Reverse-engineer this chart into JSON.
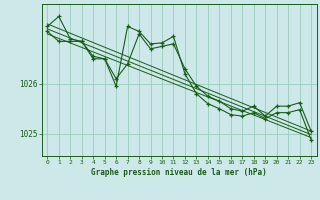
{
  "title": "Graphe pression niveau de la mer (hPa)",
  "bg_color": "#cce8e8",
  "grid_color": "#99ccbb",
  "line_color": "#1a5c1a",
  "text_color": "#1a5c1a",
  "xlim": [
    -0.5,
    23.5
  ],
  "ylim": [
    1024.55,
    1027.6
  ],
  "yticks": [
    1025,
    1026
  ],
  "xticks": [
    0,
    1,
    2,
    3,
    4,
    5,
    6,
    7,
    8,
    9,
    10,
    11,
    12,
    13,
    14,
    15,
    16,
    17,
    18,
    19,
    20,
    21,
    22,
    23
  ],
  "series1_x": [
    0,
    1,
    2,
    3,
    4,
    5,
    6,
    7,
    8,
    9,
    10,
    11,
    12,
    13,
    14,
    15,
    16,
    17,
    18,
    19,
    20,
    21,
    22,
    23
  ],
  "series1_y": [
    1027.15,
    1027.35,
    1026.9,
    1026.85,
    1026.5,
    1026.5,
    1026.1,
    1026.4,
    1027.0,
    1026.7,
    1026.75,
    1026.8,
    1026.3,
    1025.95,
    1025.75,
    1025.65,
    1025.5,
    1025.45,
    1025.55,
    1025.35,
    1025.55,
    1025.55,
    1025.62,
    1025.05
  ],
  "series2_x": [
    0,
    1,
    2,
    3,
    4,
    5,
    6,
    7,
    8,
    9,
    10,
    11,
    12,
    13,
    14,
    15,
    16,
    17,
    18,
    19,
    20,
    21,
    22,
    23
  ],
  "series2_y": [
    1027.05,
    1026.85,
    1026.85,
    1026.85,
    1026.55,
    1026.5,
    1025.95,
    1027.15,
    1027.05,
    1026.8,
    1026.82,
    1026.95,
    1026.2,
    1025.8,
    1025.6,
    1025.5,
    1025.38,
    1025.35,
    1025.42,
    1025.3,
    1025.42,
    1025.42,
    1025.48,
    1024.88
  ],
  "trend1_x": [
    0,
    23
  ],
  "trend1_y": [
    1027.2,
    1025.05
  ],
  "trend2_x": [
    0,
    23
  ],
  "trend2_y": [
    1027.1,
    1024.98
  ],
  "trend3_x": [
    0,
    23
  ],
  "trend3_y": [
    1027.0,
    1024.92
  ]
}
